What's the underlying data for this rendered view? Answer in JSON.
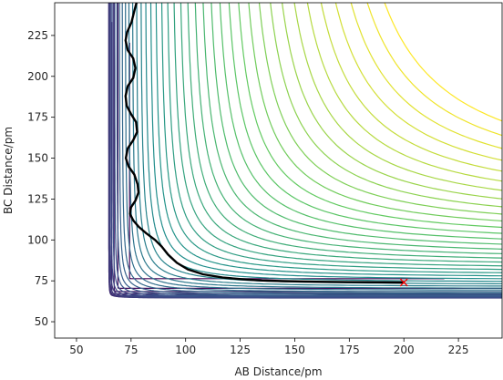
{
  "chart_data": {
    "type": "contour",
    "title": "",
    "xlabel": "AB Distance/pm",
    "ylabel": "BC Distance/pm",
    "xlim": [
      40,
      245
    ],
    "ylim": [
      40,
      245
    ],
    "xticks": [
      50,
      75,
      100,
      125,
      150,
      175,
      200,
      225
    ],
    "yticks": [
      50,
      75,
      100,
      125,
      150,
      175,
      200,
      225
    ],
    "xtick_labels": [
      "50",
      "75",
      "100",
      "125",
      "150",
      "175",
      "200",
      "225"
    ],
    "ytick_labels": [
      "50",
      "75",
      "100",
      "125",
      "150",
      "175",
      "200",
      "225"
    ],
    "grid": false,
    "colormap": "viridis",
    "colormap_stops": [
      "#440154",
      "#3b528b",
      "#21918c",
      "#5ec962",
      "#fde725"
    ],
    "trajectory_color": "#000000",
    "end_marker": {
      "x": 200,
      "y": 74,
      "symbol": "x",
      "color": "#ff0000"
    },
    "trajectory": [
      [
        77.5,
        245
      ],
      [
        76.5,
        240
      ],
      [
        75.2,
        233
      ],
      [
        73.2,
        227
      ],
      [
        72.5,
        222
      ],
      [
        73.5,
        216
      ],
      [
        76.0,
        211
      ],
      [
        77.0,
        205
      ],
      [
        76.0,
        199
      ],
      [
        73.5,
        194
      ],
      [
        72.5,
        188
      ],
      [
        73.0,
        182
      ],
      [
        75.0,
        177
      ],
      [
        77.3,
        172
      ],
      [
        77.8,
        166
      ],
      [
        76.0,
        161
      ],
      [
        73.5,
        156
      ],
      [
        72.6,
        150
      ],
      [
        73.8,
        145
      ],
      [
        76.5,
        140
      ],
      [
        78.0,
        134
      ],
      [
        78.4,
        129
      ],
      [
        77.0,
        124
      ],
      [
        75.0,
        120
      ],
      [
        74.5,
        116
      ],
      [
        76.0,
        112
      ],
      [
        78.5,
        108
      ],
      [
        82.0,
        104
      ],
      [
        86.0,
        100
      ],
      [
        89.0,
        96
      ],
      [
        92.0,
        91
      ],
      [
        96.0,
        86
      ],
      [
        101.0,
        82
      ],
      [
        108.0,
        79
      ],
      [
        117.0,
        77
      ],
      [
        126.0,
        76
      ],
      [
        135.0,
        75.2
      ],
      [
        145.0,
        74.8
      ],
      [
        160.0,
        74.4
      ],
      [
        175.0,
        74.2
      ],
      [
        190.0,
        74.1
      ],
      [
        200.0,
        74.0
      ]
    ]
  }
}
